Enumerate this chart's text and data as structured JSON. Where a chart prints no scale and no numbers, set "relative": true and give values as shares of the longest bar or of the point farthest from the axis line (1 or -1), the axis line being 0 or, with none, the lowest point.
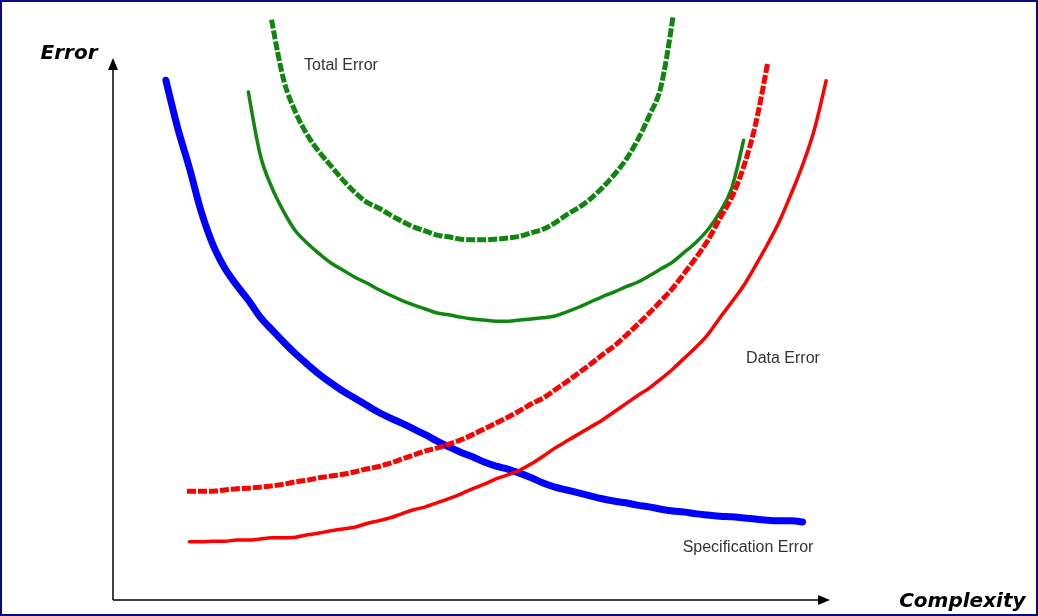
{
  "chart_data": {
    "type": "line",
    "relative": true,
    "xlabel": "Complexity",
    "ylabel": "Error",
    "tick_labels": false,
    "grid": false,
    "marker": "none",
    "categories": [
      null,
      null,
      null,
      null,
      null,
      null,
      null,
      null,
      null,
      null,
      null,
      null,
      null,
      null,
      null,
      null,
      null,
      null,
      null,
      null,
      null,
      null,
      null,
      null,
      null,
      null,
      null,
      null,
      null,
      null,
      null,
      null,
      null,
      null,
      null,
      null,
      null,
      null,
      null,
      null,
      null,
      null,
      null,
      null,
      null,
      null,
      null,
      null,
      null,
      null,
      null,
      null,
      null,
      null,
      null,
      null,
      null
    ],
    "series": [
      {
        "name": "Specification Error",
        "color": "#0000ff",
        "line_style": "solid",
        "values": [
          0.893,
          0.811,
          0.742,
          0.667,
          0.61,
          0.57,
          0.541,
          0.515,
          0.486,
          0.464,
          0.443,
          0.423,
          0.405,
          0.388,
          0.373,
          0.359,
          0.347,
          0.335,
          0.323,
          0.313,
          0.304,
          0.294,
          0.284,
          0.273,
          0.263,
          0.254,
          0.246,
          0.237,
          0.23,
          0.225,
          0.218,
          0.21,
          0.201,
          0.194,
          0.189,
          0.184,
          0.179,
          0.174,
          0.17,
          0.167,
          0.163,
          0.16,
          0.156,
          0.153,
          0.151,
          0.148,
          0.146,
          0.144,
          0.143,
          0.141,
          0.139,
          0.137,
          0.136,
          0.136,
          0.134,
          null,
          null
        ]
      },
      {
        "name": "Data Error",
        "color": "#ff0000",
        "line_style": "solid",
        "values": [
          null,
          null,
          0.1,
          0.1,
          0.101,
          0.101,
          0.103,
          0.103,
          0.105,
          0.107,
          0.107,
          0.108,
          0.112,
          0.115,
          0.119,
          0.122,
          0.125,
          0.131,
          0.136,
          0.141,
          0.148,
          0.155,
          0.16,
          0.167,
          0.174,
          0.182,
          0.191,
          0.199,
          0.208,
          0.215,
          0.223,
          0.234,
          0.247,
          0.261,
          0.273,
          0.285,
          0.297,
          0.309,
          0.323,
          0.337,
          0.351,
          0.364,
          0.38,
          0.397,
          0.416,
          0.435,
          0.457,
          0.485,
          0.512,
          0.54,
          0.574,
          0.61,
          0.649,
          0.696,
          0.747,
          0.808,
          0.892
        ]
      },
      {
        "color": "#0f870f",
        "line_style": "solid",
        "values": [
          null,
          null,
          null,
          null,
          null,
          null,
          null,
          0.873,
          0.765,
          0.708,
          0.667,
          0.634,
          0.613,
          0.595,
          0.579,
          0.567,
          0.555,
          0.545,
          0.534,
          0.524,
          0.515,
          0.507,
          0.5,
          0.493,
          0.49,
          0.486,
          0.483,
          0.481,
          0.479,
          0.479,
          0.481,
          0.483,
          0.485,
          0.488,
          0.495,
          0.503,
          0.512,
          0.521,
          0.529,
          0.538,
          0.546,
          0.557,
          0.569,
          0.581,
          0.598,
          0.615,
          0.637,
          0.667,
          0.708,
          0.79,
          null,
          null,
          null,
          null,
          null,
          null,
          null
        ]
      },
      {
        "name": "Total Error",
        "color": "#0f870f",
        "line_style": "dotted",
        "values": [
          null,
          null,
          null,
          null,
          null,
          null,
          null,
          null,
          null,
          0.993,
          0.893,
          0.838,
          0.799,
          0.77,
          0.746,
          0.722,
          0.701,
          0.684,
          0.674,
          0.662,
          0.651,
          0.641,
          0.634,
          0.627,
          0.624,
          0.62,
          0.619,
          0.619,
          0.62,
          0.622,
          0.625,
          0.631,
          0.637,
          0.648,
          0.662,
          0.674,
          0.689,
          0.708,
          0.73,
          0.756,
          0.79,
          0.832,
          0.883,
          1.0,
          null,
          null,
          null,
          null,
          null,
          null,
          null,
          null,
          null,
          null,
          null,
          null,
          null
        ]
      },
      {
        "color": "#ff0000",
        "line_style": "dotted",
        "values": [
          null,
          null,
          0.187,
          0.187,
          0.187,
          0.189,
          0.191,
          0.192,
          0.194,
          0.196,
          0.199,
          0.203,
          0.206,
          0.21,
          0.213,
          0.216,
          0.22,
          0.225,
          0.229,
          0.235,
          0.242,
          0.249,
          0.256,
          0.261,
          0.268,
          0.275,
          0.284,
          0.294,
          0.304,
          0.314,
          0.325,
          0.337,
          0.347,
          0.361,
          0.375,
          0.39,
          0.405,
          0.421,
          0.436,
          0.454,
          0.473,
          0.493,
          0.514,
          0.536,
          0.562,
          0.589,
          0.619,
          0.656,
          0.692,
          0.744,
          0.816,
          0.918,
          null,
          null,
          null,
          null,
          null
        ]
      }
    ]
  }
}
